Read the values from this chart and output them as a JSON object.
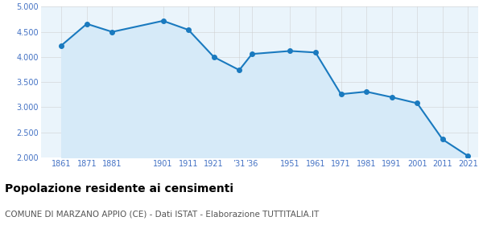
{
  "years": [
    1861,
    1871,
    1881,
    1901,
    1911,
    1921,
    1931,
    1936,
    1951,
    1961,
    1971,
    1981,
    1991,
    2001,
    2011,
    2021
  ],
  "population": [
    4230,
    4660,
    4500,
    4720,
    4540,
    4000,
    3740,
    4060,
    4120,
    4090,
    3260,
    3310,
    3200,
    3080,
    2360,
    2030
  ],
  "line_color": "#1a7abf",
  "fill_color": "#d6eaf8",
  "marker_color": "#1a7abf",
  "grid_color": "#cccccc",
  "background_color": "#eaf4fb",
  "title": "Popolazione residente ai censimenti",
  "subtitle": "COMUNE DI MARZANO APPIO (CE) - Dati ISTAT - Elaborazione TUTTITALIA.IT",
  "ylim": [
    2000,
    5000
  ],
  "yticks": [
    2000,
    2500,
    3000,
    3500,
    4000,
    4500,
    5000
  ],
  "title_fontsize": 10,
  "subtitle_fontsize": 7.5,
  "tick_label_color": "#4472c4",
  "tick_fontsize": 7
}
